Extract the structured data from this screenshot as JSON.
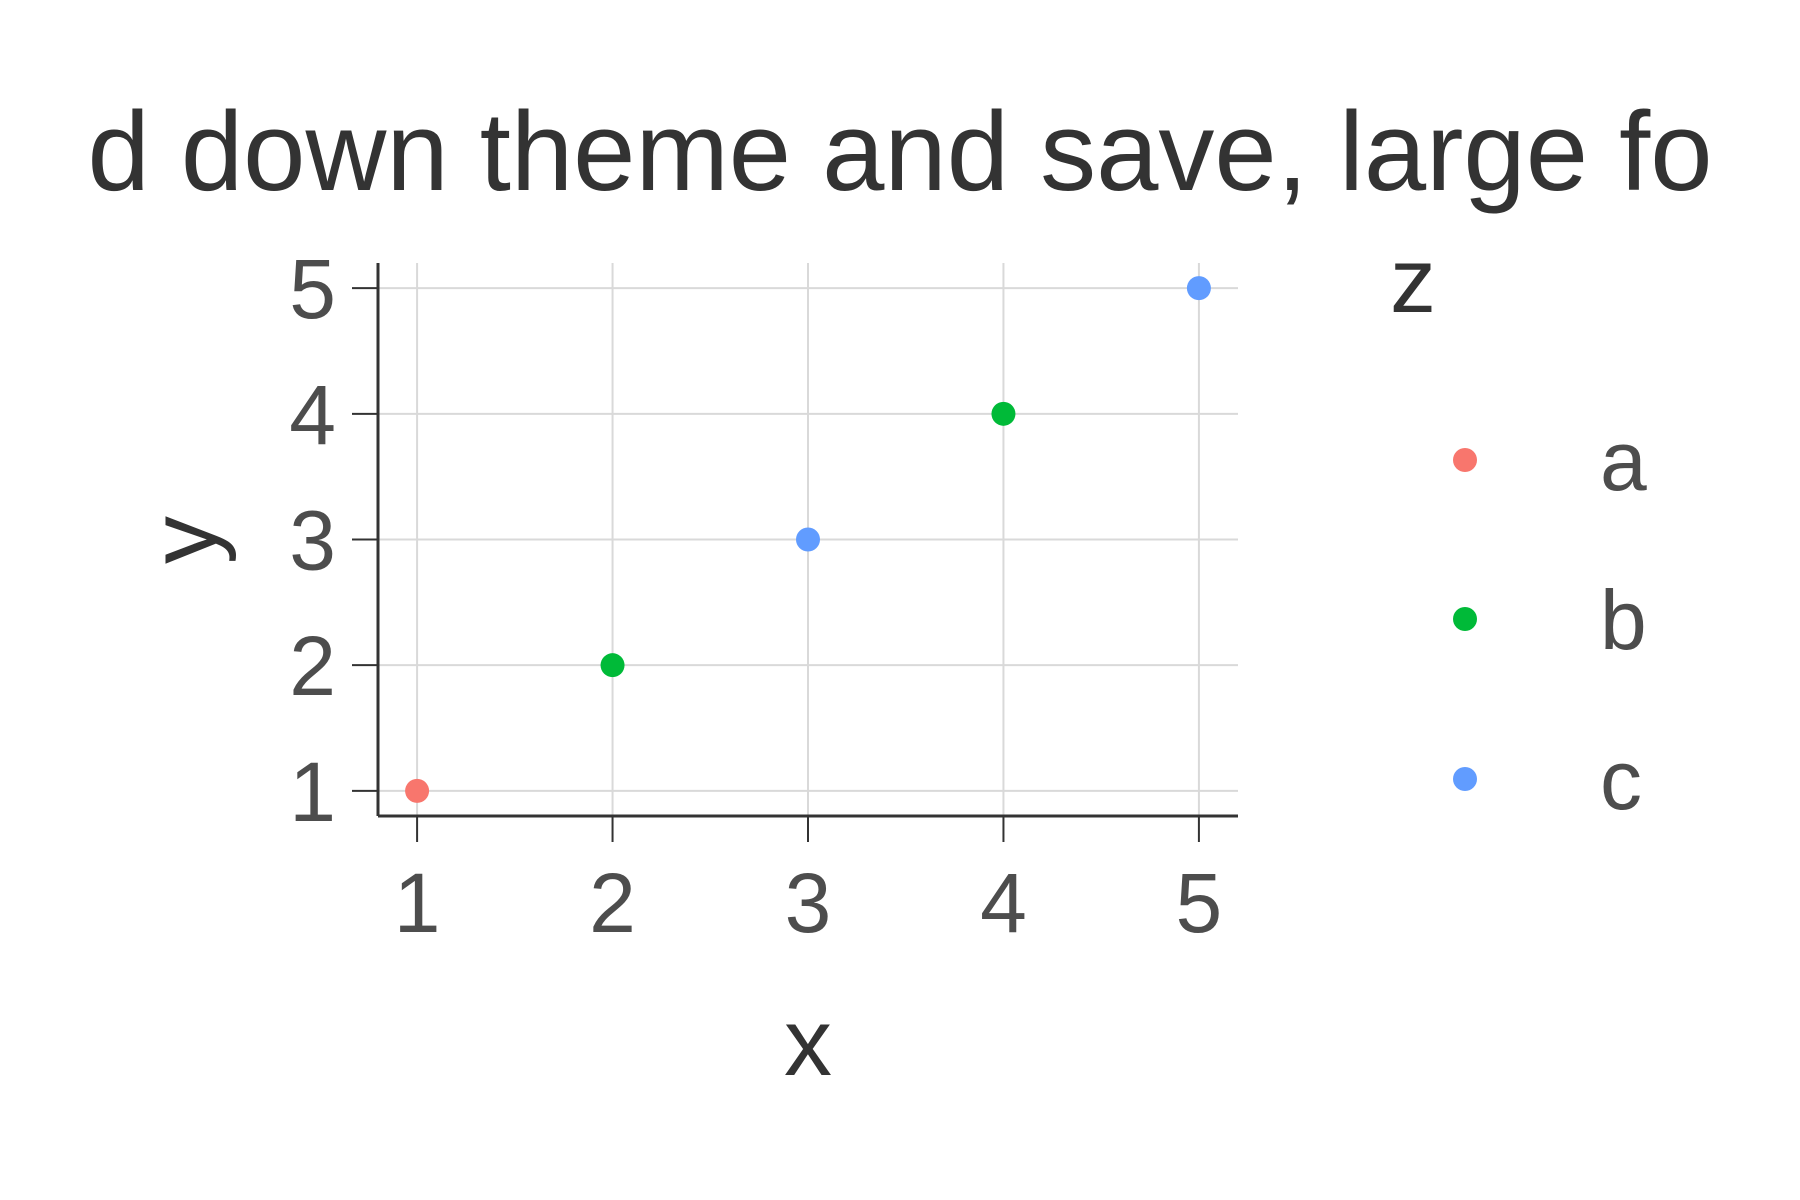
{
  "chart_data": {
    "type": "scatter",
    "title": "d down theme and save, large fo",
    "xlabel": "x",
    "ylabel": "y",
    "xlim": [
      0.8,
      5.2
    ],
    "ylim": [
      0.8,
      5.2
    ],
    "x_ticks": [
      1,
      2,
      3,
      4,
      5
    ],
    "y_ticks": [
      1,
      2,
      3,
      4,
      5
    ],
    "grid": true,
    "legend": {
      "title": "z",
      "placement": "right",
      "items": [
        {
          "label": "a",
          "color": "#F8766D"
        },
        {
          "label": "b",
          "color": "#00BA38"
        },
        {
          "label": "c",
          "color": "#619CFF"
        }
      ]
    },
    "points": [
      {
        "x": 1,
        "y": 1,
        "z": "a"
      },
      {
        "x": 2,
        "y": 2,
        "z": "b"
      },
      {
        "x": 3,
        "y": 3,
        "z": "c"
      },
      {
        "x": 4,
        "y": 4,
        "z": "b"
      },
      {
        "x": 5,
        "y": 5,
        "z": "c"
      }
    ]
  }
}
